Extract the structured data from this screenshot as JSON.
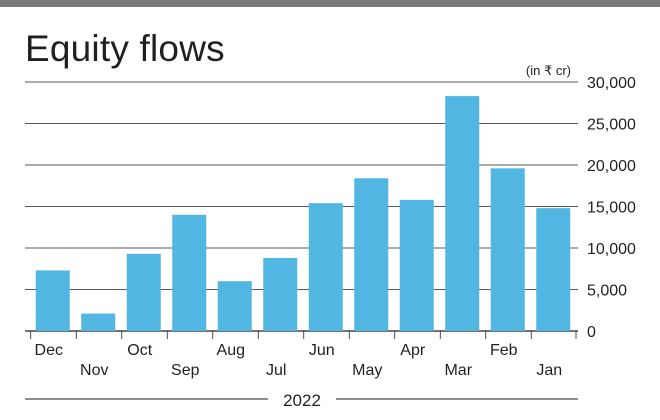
{
  "chart_data": {
    "type": "bar",
    "title": "Equity flows",
    "unit_label": "(in ₹ cr)",
    "year_label": "2022",
    "categories": [
      "Dec",
      "Nov",
      "Oct",
      "Sep",
      "Aug",
      "Jul",
      "Jun",
      "May",
      "Apr",
      "Mar",
      "Feb",
      "Jan"
    ],
    "values": [
      7300,
      2100,
      9300,
      14000,
      6000,
      8800,
      15400,
      18400,
      15800,
      28300,
      19600,
      14800
    ],
    "ylim": [
      0,
      30000
    ],
    "yticks": [
      "30,000",
      "25,000",
      "20,000",
      "15,000",
      "10,000",
      "5,000",
      "0"
    ],
    "ytick_values": [
      30000,
      25000,
      20000,
      15000,
      10000,
      5000,
      0
    ],
    "y_axis_position": "right",
    "grid": true,
    "colors": {
      "bar": "#52b6e2",
      "grid": "#231f20",
      "top_band": "#7b7b7d",
      "text": "#231f20"
    }
  }
}
